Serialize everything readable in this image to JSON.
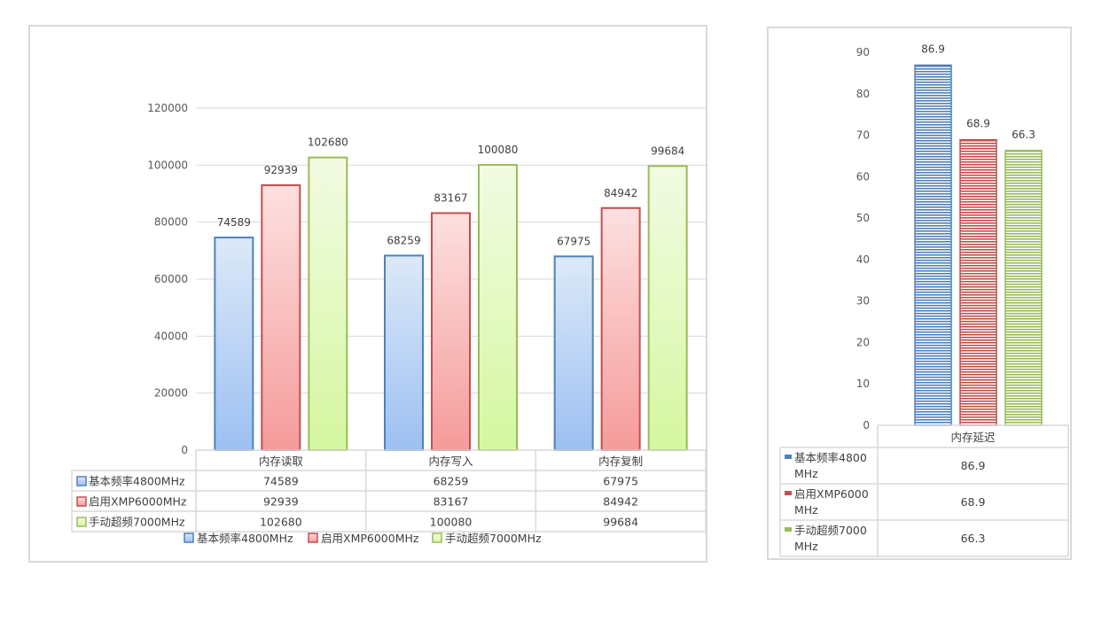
{
  "chart_data": [
    {
      "type": "bar",
      "categories": [
        "内存读取",
        "内存写入",
        "内存复制"
      ],
      "series": [
        {
          "name": "基本频率4800MHz",
          "values": [
            74589,
            68259,
            67975
          ],
          "color": "#4f81bd",
          "fill_top": "#dce9f8",
          "fill_bottom": "#9dc0f2"
        },
        {
          "name": "启用XMP6000MHz",
          "values": [
            92939,
            83167,
            84942
          ],
          "color": "#c0504d",
          "fill_top": "#fde0e0",
          "fill_bottom": "#f59b9b"
        },
        {
          "name": "手动超频7000MHz",
          "values": [
            102680,
            100080,
            99684
          ],
          "color": "#9bbb59",
          "fill_top": "#f2fbe3",
          "fill_bottom": "#d5f7a0"
        }
      ],
      "ylim": [
        0,
        120000
      ],
      "yticks": [
        0,
        20000,
        40000,
        60000,
        80000,
        100000,
        120000
      ],
      "grid": true,
      "data_table": true,
      "legend_position": "bottom"
    },
    {
      "type": "bar",
      "categories": [
        "内存延迟"
      ],
      "series": [
        {
          "name": "基本频率4800MHz",
          "values": [
            86.9
          ],
          "color": "#4f81bd"
        },
        {
          "name": "启用XMP6000MHz",
          "values": [
            68.9
          ],
          "color": "#c0504d"
        },
        {
          "name": "手动超频7000MHz",
          "values": [
            66.3
          ],
          "color": "#9bbb59"
        }
      ],
      "ylim": [
        0,
        90
      ],
      "yticks": [
        0,
        10,
        20,
        30,
        40,
        50,
        60,
        70,
        80,
        90
      ],
      "grid": false,
      "data_table": true,
      "fill_pattern": "horizontal-stripes"
    }
  ],
  "right_table_labels": [
    [
      "基本频率4800",
      "MHz"
    ],
    [
      "启用XMP6000",
      "MHz"
    ],
    [
      "手动超频7000",
      "MHz"
    ]
  ]
}
